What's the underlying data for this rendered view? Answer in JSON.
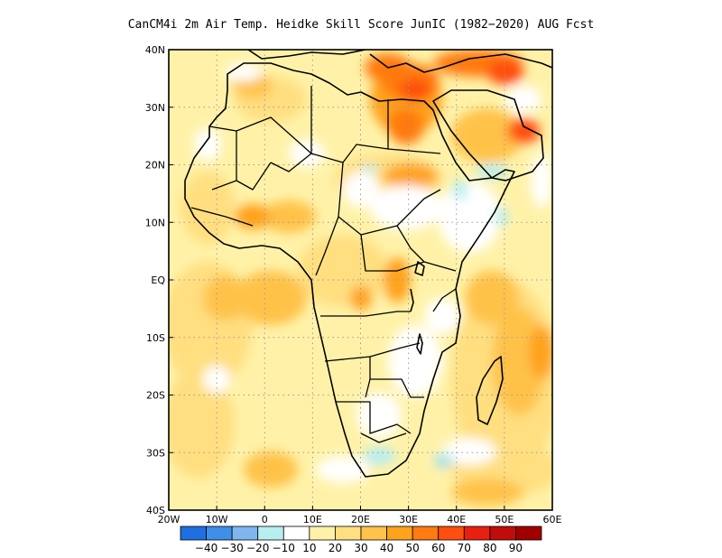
{
  "title": "CanCM4i  2m Air Temp. Heidke Skill Score JunIC (1982−2020) AUG Fcst",
  "map": {
    "lon_range": [
      -20,
      60
    ],
    "lat_range": [
      -40,
      40
    ],
    "grid": "dotted",
    "x_ticks": [
      {
        "value": -20,
        "label": "20W"
      },
      {
        "value": -10,
        "label": "10W"
      },
      {
        "value": 0,
        "label": "0"
      },
      {
        "value": 10,
        "label": "10E"
      },
      {
        "value": 20,
        "label": "20E"
      },
      {
        "value": 30,
        "label": "30E"
      },
      {
        "value": 40,
        "label": "40E"
      },
      {
        "value": 50,
        "label": "50E"
      },
      {
        "value": 60,
        "label": "60E"
      }
    ],
    "y_ticks": [
      {
        "value": 40,
        "label": "40N"
      },
      {
        "value": 30,
        "label": "30N"
      },
      {
        "value": 20,
        "label": "20N"
      },
      {
        "value": 10,
        "label": "10N"
      },
      {
        "value": 0,
        "label": "EQ"
      },
      {
        "value": -10,
        "label": "10S"
      },
      {
        "value": -20,
        "label": "20S"
      },
      {
        "value": -30,
        "label": "30S"
      },
      {
        "value": -40,
        "label": "40S"
      }
    ]
  },
  "colorbar": {
    "colors": [
      "#1f6fe0",
      "#3d8fe8",
      "#7fb6f0",
      "#b7eef0",
      "#ffffff",
      "#fff2a8",
      "#ffdf80",
      "#ffc24a",
      "#ffa21c",
      "#ff7a10",
      "#ff4e10",
      "#e82010",
      "#c00c0a",
      "#a00000"
    ],
    "labels": [
      "−40",
      "−30",
      "−20",
      "−10",
      "10",
      "20",
      "30",
      "40",
      "50",
      "60",
      "70",
      "80",
      "90"
    ]
  }
}
